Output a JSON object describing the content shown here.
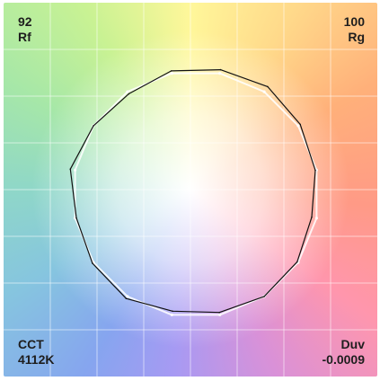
{
  "metrics": {
    "rf": {
      "value": "92",
      "label": "Rf"
    },
    "rg": {
      "value": "100",
      "label": "Rg"
    },
    "cct": {
      "label": "CCT",
      "value": "4112K"
    },
    "duv": {
      "label": "Duv",
      "value": "-0.0009"
    }
  },
  "chart_data": {
    "type": "polar-line",
    "description_hidden": "",
    "bins": 16,
    "reference_radius": 1.0,
    "series": [
      {
        "role": "reference",
        "color": "#ffffff",
        "radii": [
          1,
          1,
          1,
          1,
          1,
          1,
          1,
          1,
          1,
          1,
          1,
          1,
          1,
          1,
          1,
          1
        ]
      },
      {
        "role": "test",
        "color": "#111111",
        "radii": [
          1.03,
          1.05,
          1.02,
          0.99,
          0.96,
          0.99,
          1.0,
          0.98,
          0.97,
          1.02,
          1.01,
          0.99,
          1.04,
          1.0,
          0.98,
          1.02
        ]
      }
    ],
    "grid": true,
    "grid_divisions": 8
  }
}
